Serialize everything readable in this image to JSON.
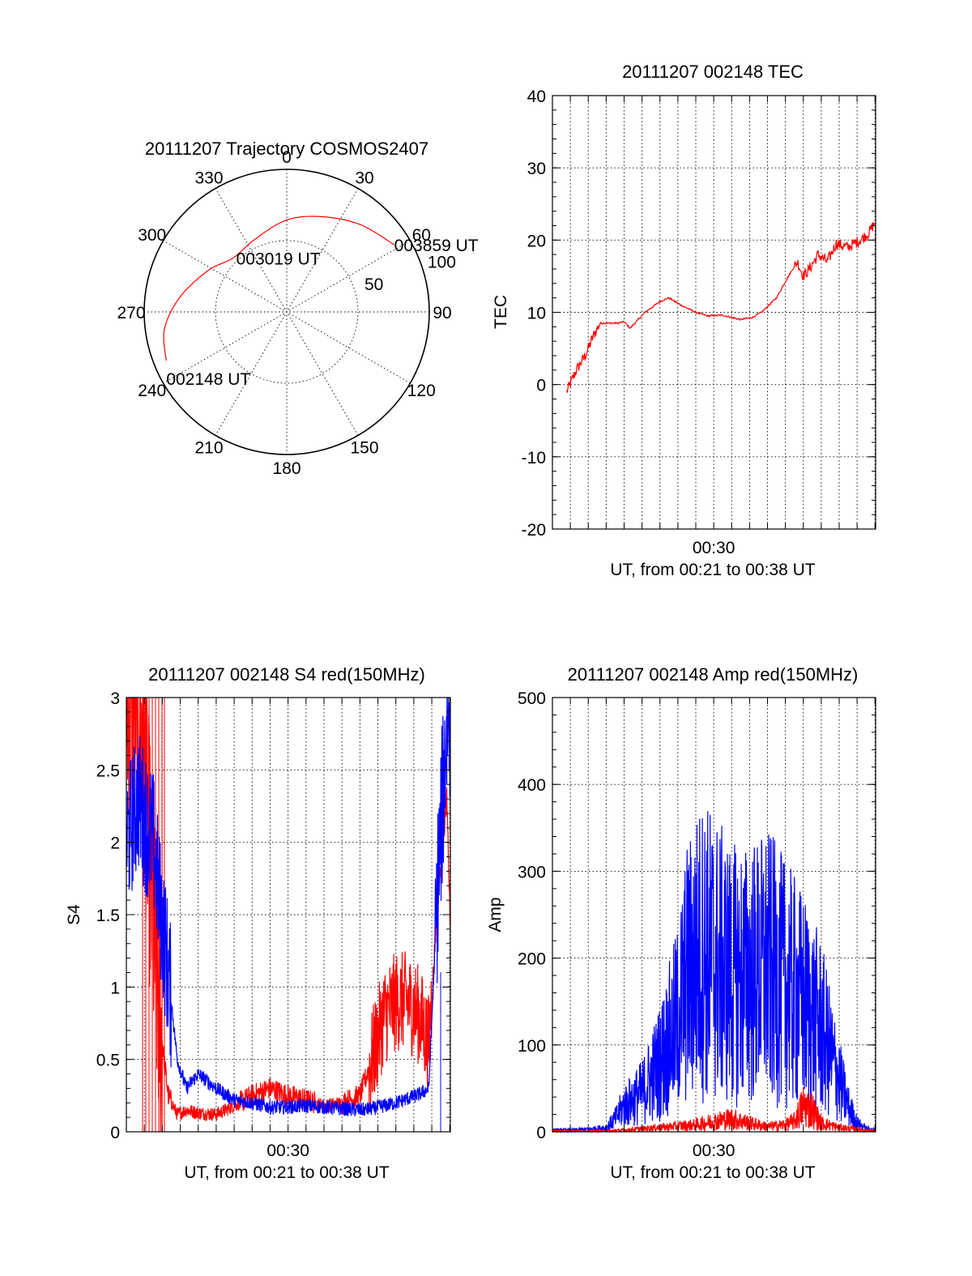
{
  "chart_data": [
    {
      "type": "polar",
      "title": "20111207 Trajectory COSMOS2407",
      "angle_labels": [
        "0",
        "30",
        "60",
        "90",
        "120",
        "150",
        "180",
        "210",
        "240",
        "270",
        "300",
        "330"
      ],
      "radial_labels": [
        "50",
        "100"
      ],
      "series": [
        {
          "color": "#ff0000",
          "points": [
            {
              "azimuth": 248,
              "elevation": 8
            },
            {
              "azimuth": 262,
              "elevation": 12
            },
            {
              "azimuth": 278,
              "elevation": 22
            },
            {
              "azimuth": 298,
              "elevation": 34
            },
            {
              "azimuth": 315,
              "elevation": 42
            },
            {
              "azimuth": 336,
              "elevation": 40
            },
            {
              "azimuth": 0,
              "elevation": 32
            },
            {
              "azimuth": 20,
              "elevation": 26
            },
            {
              "azimuth": 40,
              "elevation": 18
            },
            {
              "azimuth": 58,
              "elevation": 10
            }
          ]
        }
      ],
      "annotations": [
        {
          "text": "002148 UT",
          "azimuth": 248,
          "elevation": 8
        },
        {
          "text": "003019 UT",
          "azimuth": 315,
          "elevation": 42
        },
        {
          "text": "003859 UT",
          "azimuth": 58,
          "elevation": 10
        }
      ]
    },
    {
      "type": "line",
      "title": "20111207 002148 TEC",
      "xlabel": "UT, from 00:21 to 00:38 UT",
      "ylabel": "TEC",
      "x_tick_labels": [
        {
          "x": "00:30",
          "label": "00:30"
        }
      ],
      "xlim": [
        "00:21:00",
        "00:39:02"
      ],
      "ylim": [
        -20,
        40
      ],
      "y_ticks": [
        -20,
        -10,
        0,
        10,
        20,
        30,
        40
      ],
      "grid": true,
      "series": [
        {
          "color": "#ff0000",
          "x": [
            "00:21:48",
            "00:22:20",
            "00:22:50",
            "00:23:20",
            "00:23:40",
            "00:24:40",
            "00:25:00",
            "00:25:20",
            "00:26:10",
            "00:27:00",
            "00:27:30",
            "00:28:10",
            "00:29:00",
            "00:29:40",
            "00:30:30",
            "00:31:30",
            "00:32:10",
            "00:32:40",
            "00:33:30",
            "00:34:10",
            "00:34:40",
            "00:35:00",
            "00:35:20",
            "00:35:50",
            "00:36:20",
            "00:36:50",
            "00:37:30",
            "00:38:10",
            "00:38:40",
            "00:39:00"
          ],
          "values": [
            -1,
            2,
            4,
            7,
            8.5,
            8.5,
            8.7,
            7.8,
            10,
            11.5,
            12,
            11,
            10,
            9.5,
            9.6,
            9,
            9.3,
            10,
            12,
            15,
            17,
            15,
            16,
            18,
            17,
            19.5,
            19,
            20,
            21,
            22.5
          ]
        }
      ]
    },
    {
      "type": "line",
      "title": "20111207 002148 S4 red(150MHz)",
      "xlabel": "UT, from 00:21 to 00:38 UT",
      "ylabel": "S4",
      "x_tick_labels": [
        {
          "x": "00:30",
          "label": "00:30"
        }
      ],
      "xlim": [
        "00:21:00",
        "00:39:02"
      ],
      "ylim": [
        0,
        3
      ],
      "y_ticks": [
        "0",
        "0.5",
        "1",
        "1.5",
        "2",
        "2.5",
        "3"
      ],
      "grid": true,
      "series": [
        {
          "color": "#ff0000",
          "x": [
            "00:21:00",
            "00:21:40",
            "00:22:10",
            "00:22:30",
            "00:22:50",
            "00:23:20",
            "00:23:50",
            "00:24:20",
            "00:25:00",
            "00:26:00",
            "00:27:00",
            "00:28:00",
            "00:29:00",
            "00:30:00",
            "00:31:00",
            "00:32:00",
            "00:33:00",
            "00:34:00",
            "00:34:40",
            "00:35:20",
            "00:36:00",
            "00:36:40",
            "00:37:20",
            "00:37:50",
            "00:38:20",
            "00:38:50",
            "00:39:02"
          ],
          "values": [
            3,
            3,
            2.2,
            1.4,
            0.8,
            0.25,
            0.12,
            0.15,
            0.13,
            0.12,
            0.18,
            0.25,
            0.3,
            0.25,
            0.22,
            0.18,
            0.2,
            0.25,
            0.5,
            0.8,
            0.9,
            0.9,
            0.8,
            0.6,
            1.6,
            2.3,
            1.4
          ]
        },
        {
          "color": "#0000ff",
          "x": [
            "00:21:00",
            "00:21:40",
            "00:22:10",
            "00:22:30",
            "00:22:50",
            "00:23:20",
            "00:23:50",
            "00:24:20",
            "00:25:00",
            "00:26:00",
            "00:27:00",
            "00:28:00",
            "00:29:00",
            "00:30:00",
            "00:31:00",
            "00:32:00",
            "00:33:00",
            "00:34:00",
            "00:34:40",
            "00:35:20",
            "00:36:00",
            "00:36:40",
            "00:37:20",
            "00:37:50",
            "00:38:20",
            "00:38:50",
            "00:39:02"
          ],
          "values": [
            2.0,
            2.3,
            2.1,
            2.0,
            1.6,
            1.1,
            0.5,
            0.3,
            0.4,
            0.3,
            0.22,
            0.2,
            0.17,
            0.17,
            0.18,
            0.17,
            0.16,
            0.15,
            0.16,
            0.18,
            0.2,
            0.23,
            0.26,
            0.3,
            1.7,
            2.8,
            2.9
          ]
        }
      ]
    },
    {
      "type": "line",
      "title": "20111207 002148 Amp red(150MHz)",
      "xlabel": "UT, from 00:21 to 00:38 UT",
      "ylabel": "Amp",
      "x_tick_labels": [
        {
          "x": "00:30",
          "label": "00:30"
        }
      ],
      "xlim": [
        "00:21:00",
        "00:39:02"
      ],
      "ylim": [
        0,
        500
      ],
      "y_ticks": [
        0,
        100,
        200,
        300,
        400,
        500
      ],
      "grid": true,
      "series": [
        {
          "color": "#0000ff",
          "x": [
            "00:21:00",
            "00:22:00",
            "00:23:00",
            "00:24:00",
            "00:24:30",
            "00:25:00",
            "00:26:00",
            "00:27:00",
            "00:28:00",
            "00:28:30",
            "00:29:00",
            "00:29:30",
            "00:30:00",
            "00:31:00",
            "00:32:00",
            "00:33:00",
            "00:34:00",
            "00:35:00",
            "00:36:00",
            "00:36:30",
            "00:37:00",
            "00:37:30",
            "00:38:00",
            "00:38:30",
            "00:39:02"
          ],
          "values": [
            2,
            2,
            3,
            5,
            15,
            30,
            45,
            80,
            130,
            180,
            200,
            210,
            200,
            180,
            180,
            190,
            170,
            150,
            120,
            90,
            60,
            30,
            10,
            4,
            2
          ]
        },
        {
          "color": "#ff0000",
          "x": [
            "00:21:00",
            "00:24:00",
            "00:25:00",
            "00:27:00",
            "00:29:00",
            "00:30:00",
            "00:31:00",
            "00:32:00",
            "00:33:00",
            "00:34:00",
            "00:34:30",
            "00:35:00",
            "00:35:30",
            "00:36:00",
            "00:37:00",
            "00:38:00",
            "00:39:02"
          ],
          "values": [
            1,
            1,
            2,
            5,
            8,
            12,
            15,
            10,
            6,
            8,
            12,
            30,
            25,
            10,
            5,
            3,
            1
          ]
        }
      ]
    }
  ]
}
